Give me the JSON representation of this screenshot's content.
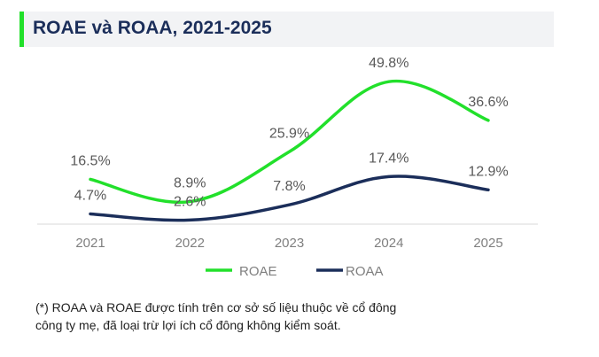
{
  "title": "ROAE và ROAA, 2021-2025",
  "footnote": {
    "line1": "(*) ROAA và ROAE được tính trên cơ sở số liệu thuộc về cổ đông",
    "line2": "công ty mẹ, đã loại trừ lợi ích cổ đông không kiểm soát."
  },
  "colors": {
    "roae": "#22e02b",
    "roaa": "#1b2e5a",
    "accent": "#22e02b",
    "title": "#1b2e5a"
  },
  "chart_data": {
    "type": "line",
    "title": "ROAE và ROAA, 2021-2025",
    "xlabel": "",
    "ylabel": "",
    "categories": [
      "2021",
      "2022",
      "2023",
      "2024",
      "2025"
    ],
    "ylim": [
      0,
      55
    ],
    "grid": false,
    "legend": "bottom",
    "series": [
      {
        "name": "ROAE",
        "values": [
          16.5,
          8.9,
          25.9,
          49.8,
          36.6
        ],
        "labels": [
          "16.5%",
          "8.9%",
          "25.9%",
          "49.8%",
          "36.6%"
        ]
      },
      {
        "name": "ROAA",
        "values": [
          4.7,
          2.6,
          7.8,
          17.4,
          12.9
        ],
        "labels": [
          "4.7%",
          "2.6%",
          "7.8%",
          "17.4%",
          "12.9%"
        ]
      }
    ]
  }
}
